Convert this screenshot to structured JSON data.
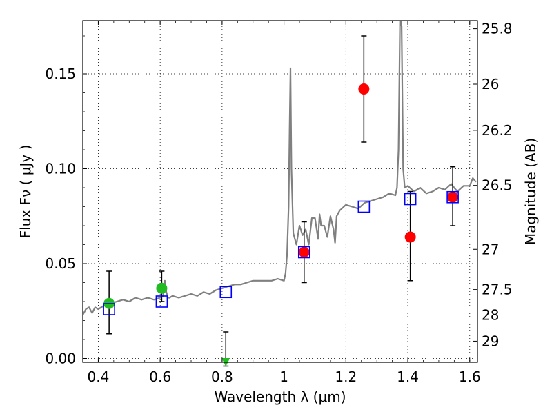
{
  "chart_data": {
    "type": "scatter",
    "xlabel": "Wavelength  λ (μm)",
    "ylabel": "Flux  Fν  ( μJy )",
    "y2label": "Magnitude (AB)",
    "xlim": [
      0.35,
      1.625
    ],
    "ylim": [
      -0.002,
      0.178
    ],
    "grid": true,
    "x_ticks": [
      {
        "value": 0.4,
        "label": "0.4"
      },
      {
        "value": 0.6,
        "label": "0.6"
      },
      {
        "value": 0.8,
        "label": "0.8"
      },
      {
        "value": 1.0,
        "label": "1"
      },
      {
        "value": 1.2,
        "label": "1.2"
      },
      {
        "value": 1.4,
        "label": "1.4"
      },
      {
        "value": 1.6,
        "label": "1.6"
      }
    ],
    "y_ticks": [
      {
        "value": 0.0,
        "label": "0.00"
      },
      {
        "value": 0.05,
        "label": "0.05"
      },
      {
        "value": 0.1,
        "label": "0.10"
      },
      {
        "value": 0.15,
        "label": "0.15"
      }
    ],
    "y2_ticks": [
      {
        "value": 25.8,
        "label": "25.8"
      },
      {
        "value": 26,
        "label": "26"
      },
      {
        "value": 26.2,
        "label": "26.2"
      },
      {
        "value": 26.5,
        "label": "26.5"
      },
      {
        "value": 27,
        "label": "27"
      },
      {
        "value": 27.5,
        "label": "27.5"
      },
      {
        "value": 28,
        "label": "28"
      },
      {
        "value": 29,
        "label": "29"
      }
    ],
    "spectrum": {
      "color": "#808080",
      "x": [
        0.35,
        0.36,
        0.37,
        0.38,
        0.39,
        0.4,
        0.42,
        0.44,
        0.46,
        0.48,
        0.5,
        0.52,
        0.54,
        0.56,
        0.58,
        0.6,
        0.61,
        0.615,
        0.62,
        0.625,
        0.63,
        0.64,
        0.66,
        0.68,
        0.7,
        0.72,
        0.74,
        0.76,
        0.78,
        0.8,
        0.82,
        0.84,
        0.86,
        0.88,
        0.9,
        0.92,
        0.94,
        0.96,
        0.98,
        1.0,
        1.005,
        1.01,
        1.015,
        1.018,
        1.021,
        1.024,
        1.03,
        1.04,
        1.05,
        1.06,
        1.07,
        1.08,
        1.09,
        1.1,
        1.11,
        1.115,
        1.12,
        1.13,
        1.14,
        1.15,
        1.16,
        1.165,
        1.17,
        1.18,
        1.2,
        1.22,
        1.24,
        1.26,
        1.28,
        1.3,
        1.32,
        1.34,
        1.36,
        1.365,
        1.37,
        1.375,
        1.38,
        1.385,
        1.39,
        1.4,
        1.42,
        1.44,
        1.46,
        1.48,
        1.5,
        1.52,
        1.54,
        1.56,
        1.58,
        1.6,
        1.61,
        1.62
      ],
      "y": [
        0.023,
        0.026,
        0.027,
        0.024,
        0.027,
        0.026,
        0.028,
        0.029,
        0.03,
        0.031,
        0.03,
        0.032,
        0.031,
        0.032,
        0.031,
        0.032,
        0.033,
        0.041,
        0.035,
        0.032,
        0.032,
        0.033,
        0.032,
        0.033,
        0.034,
        0.033,
        0.035,
        0.034,
        0.036,
        0.037,
        0.038,
        0.039,
        0.039,
        0.04,
        0.041,
        0.041,
        0.041,
        0.041,
        0.042,
        0.041,
        0.045,
        0.055,
        0.08,
        0.12,
        0.153,
        0.1,
        0.066,
        0.06,
        0.07,
        0.065,
        0.068,
        0.06,
        0.074,
        0.074,
        0.063,
        0.076,
        0.07,
        0.07,
        0.064,
        0.075,
        0.068,
        0.061,
        0.075,
        0.078,
        0.081,
        0.08,
        0.079,
        0.082,
        0.083,
        0.084,
        0.085,
        0.087,
        0.086,
        0.09,
        0.11,
        0.18,
        0.175,
        0.1,
        0.09,
        0.091,
        0.088,
        0.09,
        0.087,
        0.088,
        0.09,
        0.089,
        0.092,
        0.088,
        0.091,
        0.091,
        0.095,
        0.093
      ]
    },
    "series": [
      {
        "marker": "circle",
        "color": "#22bb22",
        "points": [
          {
            "x": 0.435,
            "y": 0.029,
            "err_lo": 0.016,
            "err_hi": 0.017
          },
          {
            "x": 0.605,
            "y": 0.037,
            "err_lo": 0.007,
            "err_hi": 0.009
          }
        ]
      },
      {
        "marker": "triangle-down",
        "color": "#22bb22",
        "points": [
          {
            "x": 0.812,
            "y": -0.002,
            "err_lo": 0.002,
            "err_hi": 0.016
          }
        ]
      },
      {
        "marker": "circle",
        "color": "#ff0000",
        "points": [
          {
            "x": 1.065,
            "y": 0.056,
            "err_lo": 0.016,
            "err_hi": 0.016
          },
          {
            "x": 1.258,
            "y": 0.142,
            "err_lo": 0.028,
            "err_hi": 0.028
          },
          {
            "x": 1.408,
            "y": 0.064,
            "err_lo": 0.023,
            "err_hi": 0.024
          },
          {
            "x": 1.545,
            "y": 0.085,
            "err_lo": 0.015,
            "err_hi": 0.016
          }
        ]
      },
      {
        "marker": "square-open",
        "color": "#0000ff",
        "points": [
          {
            "x": 0.435,
            "y": 0.026
          },
          {
            "x": 0.605,
            "y": 0.03
          },
          {
            "x": 0.812,
            "y": 0.035
          },
          {
            "x": 1.065,
            "y": 0.056
          },
          {
            "x": 1.258,
            "y": 0.08
          },
          {
            "x": 1.408,
            "y": 0.084
          },
          {
            "x": 1.545,
            "y": 0.085
          }
        ]
      }
    ]
  }
}
